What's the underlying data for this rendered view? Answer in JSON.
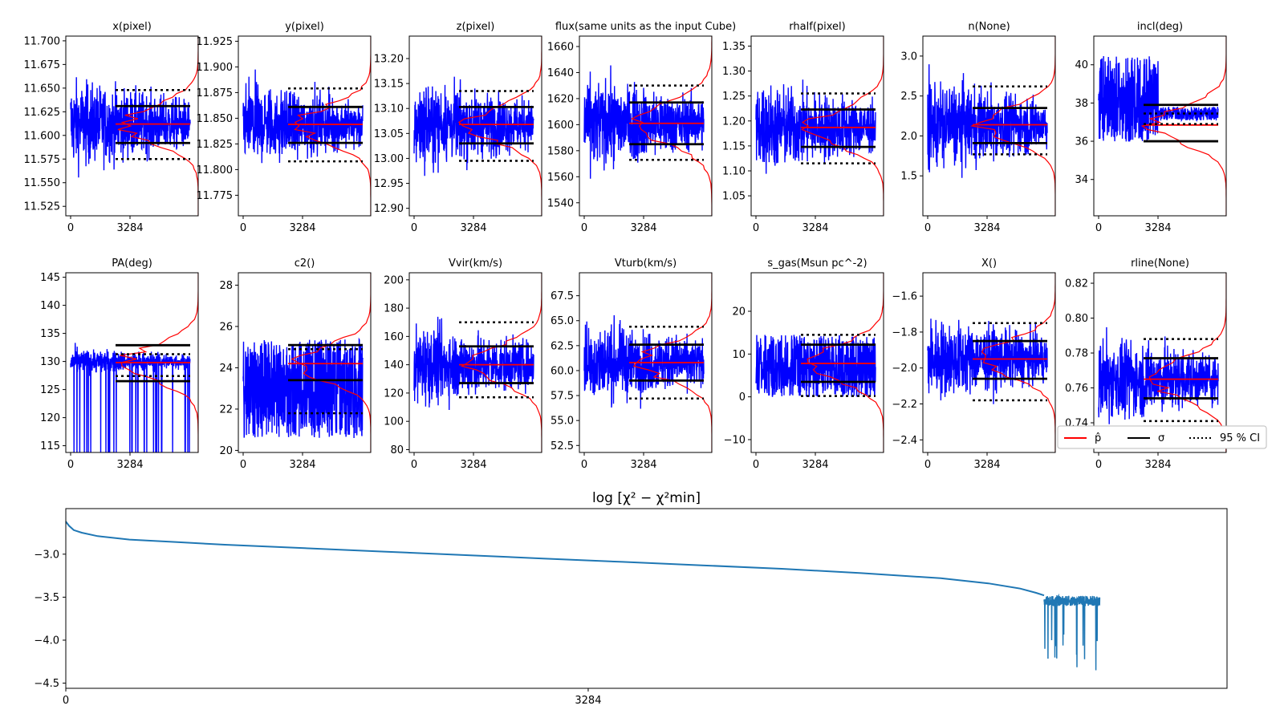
{
  "chart_data": {
    "type": "line",
    "figure_title": "",
    "trace_x_ticks": [
      "0",
      "3284"
    ],
    "legend": {
      "placement": "right, beside rline(None) panel",
      "entries": [
        {
          "label": "p̂",
          "style": "solid",
          "color": "#ff0000"
        },
        {
          "label": "σ",
          "style": "solid",
          "color": "#000000"
        },
        {
          "label": "95 % CI",
          "style": "dotted",
          "color": "#000000"
        }
      ]
    },
    "trace_panels": [
      {
        "name": "x(pixel)",
        "ylim": [
          11.515,
          11.705
        ],
        "yticks": [
          "11.525",
          "11.550",
          "11.575",
          "11.600",
          "11.625",
          "11.650",
          "11.675",
          "11.700"
        ],
        "median": 11.612,
        "sigma": [
          11.592,
          11.631
        ],
        "ci95": [
          11.575,
          11.648
        ],
        "trace_center": 11.612,
        "trace_spread": 0.04
      },
      {
        "name": "y(pixel)",
        "ylim": [
          11.755,
          11.93
        ],
        "yticks": [
          "11.775",
          "11.800",
          "11.825",
          "11.850",
          "11.875",
          "11.900",
          "11.925"
        ],
        "median": 11.844,
        "sigma": [
          11.826,
          11.861
        ],
        "ci95": [
          11.808,
          11.879
        ],
        "trace_center": 11.844,
        "trace_spread": 0.035
      },
      {
        "name": "z(pixel)",
        "ylim": [
          12.885,
          13.245
        ],
        "yticks": [
          "12.90",
          "12.95",
          "13.00",
          "13.05",
          "13.10",
          "13.15",
          "13.20"
        ],
        "median": 13.068,
        "sigma": [
          13.03,
          13.103
        ],
        "ci95": [
          12.995,
          13.135
        ],
        "trace_center": 13.068,
        "trace_spread": 0.075
      },
      {
        "name": "flux(same units as the input Cube)",
        "ylim": [
          1530,
          1668
        ],
        "yticks": [
          "1540",
          "1560",
          "1580",
          "1600",
          "1620",
          "1640",
          "1660"
        ],
        "median": 1601,
        "sigma": [
          1585,
          1617
        ],
        "ci95": [
          1573,
          1630
        ],
        "trace_center": 1601,
        "trace_spread": 30
      },
      {
        "name": "rhalf(pixel)",
        "ylim": [
          1.01,
          1.37
        ],
        "yticks": [
          "1.05",
          "1.10",
          "1.15",
          "1.20",
          "1.25",
          "1.30",
          "1.35"
        ],
        "median": 1.187,
        "sigma": [
          1.148,
          1.223
        ],
        "ci95": [
          1.115,
          1.255
        ],
        "trace_center": 1.187,
        "trace_spread": 0.08
      },
      {
        "name": "n(None)",
        "ylim": [
          1.0,
          3.25
        ],
        "yticks": [
          "1.5",
          "2.0",
          "2.5",
          "3.0"
        ],
        "median": 2.14,
        "sigma": [
          1.91,
          2.35
        ],
        "ci95": [
          1.77,
          2.62
        ],
        "trace_center": 2.14,
        "trace_spread": 0.5
      },
      {
        "name": "incl(deg)",
        "ylim": [
          32.1,
          41.5
        ],
        "yticks": [
          "34",
          "36",
          "38",
          "40"
        ],
        "median": 36.85,
        "sigma": [
          36.0,
          37.9
        ],
        "ci95": [
          36.9,
          37.45
        ],
        "trace_center": 37.3,
        "trace_spread": 0.6
      },
      {
        "name": "PA(deg)",
        "ylim": [
          113.8,
          145.8
        ],
        "yticks": [
          "115",
          "120",
          "125",
          "130",
          "135",
          "140",
          "145"
        ],
        "median": 129.8,
        "sigma": [
          126.5,
          132.9
        ],
        "ci95": [
          127.4,
          131.3
        ],
        "trace_center": 130.0,
        "trace_spread": 2.0
      },
      {
        "name": "c2()",
        "ylim": [
          19.9,
          28.6
        ],
        "yticks": [
          "20",
          "22",
          "24",
          "26",
          "28"
        ],
        "median": 24.2,
        "sigma": [
          23.4,
          25.1
        ],
        "ci95": [
          21.8,
          24.9
        ],
        "trace_center": 23.0,
        "trace_spread": 2.0
      },
      {
        "name": "Vvir(km/s)",
        "ylim": [
          78,
          205
        ],
        "yticks": [
          "80",
          "100",
          "120",
          "140",
          "160",
          "180",
          "200"
        ],
        "median": 140,
        "sigma": [
          127,
          153
        ],
        "ci95": [
          117,
          170
        ],
        "trace_center": 140,
        "trace_spread": 25
      },
      {
        "name": "Vturb(km/s)",
        "ylim": [
          51.8,
          69.8
        ],
        "yticks": [
          "52.5",
          "55.0",
          "57.5",
          "60.0",
          "62.5",
          "65.0",
          "67.5"
        ],
        "median": 60.8,
        "sigma": [
          59.0,
          62.6
        ],
        "ci95": [
          57.2,
          64.4
        ],
        "trace_center": 60.8,
        "trace_spread": 3.5
      },
      {
        "name": "s_gas(Msun pc^-2)",
        "ylim": [
          -13,
          29
        ],
        "yticks": [
          "-10",
          "0",
          "10",
          "20"
        ],
        "median": 7.8,
        "sigma": [
          3.5,
          12.2
        ],
        "ci95": [
          0.2,
          14.5
        ],
        "trace_center": 7.5,
        "trace_spread": 7.0
      },
      {
        "name": "X()",
        "ylim": [
          -2.47,
          -1.47
        ],
        "yticks": [
          "-2.4",
          "-2.2",
          "-2.0",
          "-1.8",
          "-1.6"
        ],
        "median": -1.95,
        "sigma": [
          -2.06,
          -1.85
        ],
        "ci95": [
          -2.18,
          -1.75
        ],
        "trace_center": -1.95,
        "trace_spread": 0.2
      },
      {
        "name": "rline(None)",
        "ylim": [
          0.723,
          0.826
        ],
        "yticks": [
          "0.74",
          "0.76",
          "0.78",
          "0.80",
          "0.82"
        ],
        "median": 0.765,
        "sigma": [
          0.754,
          0.777
        ],
        "ci95": [
          0.741,
          0.788
        ],
        "trace_center": 0.765,
        "trace_spread": 0.022
      }
    ],
    "chi2_panel": {
      "title": "log  [χ² − χ²min]",
      "xlim": [
        0,
        7300
      ],
      "ylim": [
        -4.56,
        -2.47
      ],
      "yticks": [
        "-3.0",
        "-3.5",
        "-4.0",
        "-4.5"
      ],
      "xticks": [
        "0",
        "3284"
      ],
      "curve_x": [
        0,
        20,
        50,
        100,
        200,
        400,
        700,
        1000,
        1500,
        2000,
        2500,
        3000,
        3500,
        4000,
        4500,
        5000,
        5500,
        5800,
        6000,
        6100,
        6150
      ],
      "curve_y": [
        -2.62,
        -2.67,
        -2.72,
        -2.75,
        -2.79,
        -2.83,
        -2.86,
        -2.89,
        -2.93,
        -2.97,
        -3.01,
        -3.05,
        -3.09,
        -3.13,
        -3.17,
        -3.22,
        -3.28,
        -3.34,
        -3.4,
        -3.45,
        -3.48
      ],
      "noise_x_range": [
        6150,
        6500
      ],
      "noise_level": -3.58
    }
  }
}
